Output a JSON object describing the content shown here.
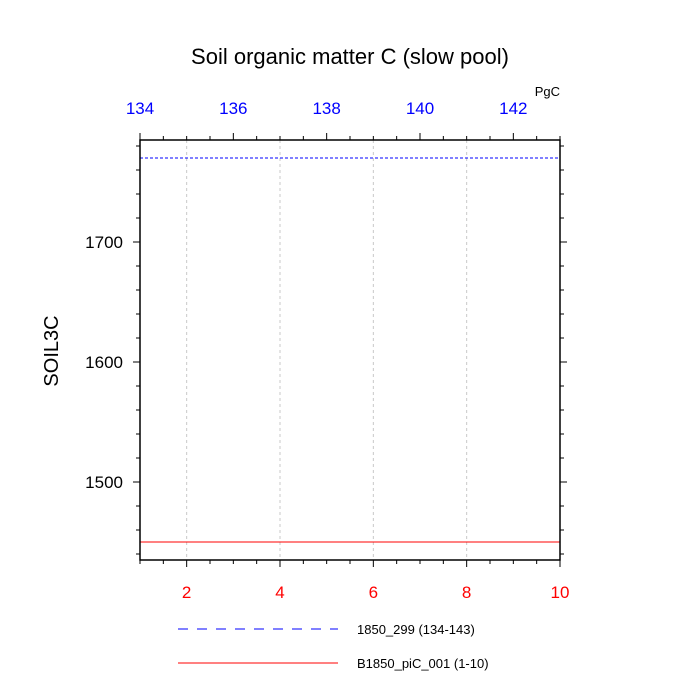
{
  "chart_data": {
    "type": "line",
    "title": "Soil organic matter C (slow pool)",
    "ylabel": "SOIL3C",
    "top_axis": {
      "units": "PgC",
      "ticks": [
        134,
        136,
        138,
        140,
        142
      ],
      "tick_labels": [
        "134",
        "136",
        "138",
        "140",
        "142"
      ],
      "range": [
        134,
        143
      ],
      "color": "#0000ff"
    },
    "bottom_axis": {
      "ticks": [
        2,
        4,
        6,
        8,
        10
      ],
      "tick_labels": [
        "2",
        "4",
        "6",
        "8",
        "10"
      ],
      "range": [
        1,
        10
      ],
      "color": "#ff0000"
    },
    "ylim": [
      1435,
      1785
    ],
    "yticks": [
      1500,
      1600,
      1700
    ],
    "ytick_labels": [
      "1500",
      "1600",
      "1700"
    ],
    "grid": "vertical dotted",
    "series": [
      {
        "name": "1850_299 (134-143)",
        "axis": "top",
        "style": "dashed",
        "color": "#0000ff",
        "x": [
          134,
          143
        ],
        "y": [
          1770,
          1770
        ]
      },
      {
        "name": "B1850_piC_001 (1-10)",
        "axis": "bottom",
        "style": "solid",
        "color": "#ff0000",
        "x": [
          1,
          10
        ],
        "y": [
          1450,
          1450
        ]
      }
    ],
    "legend_placement": "below"
  }
}
